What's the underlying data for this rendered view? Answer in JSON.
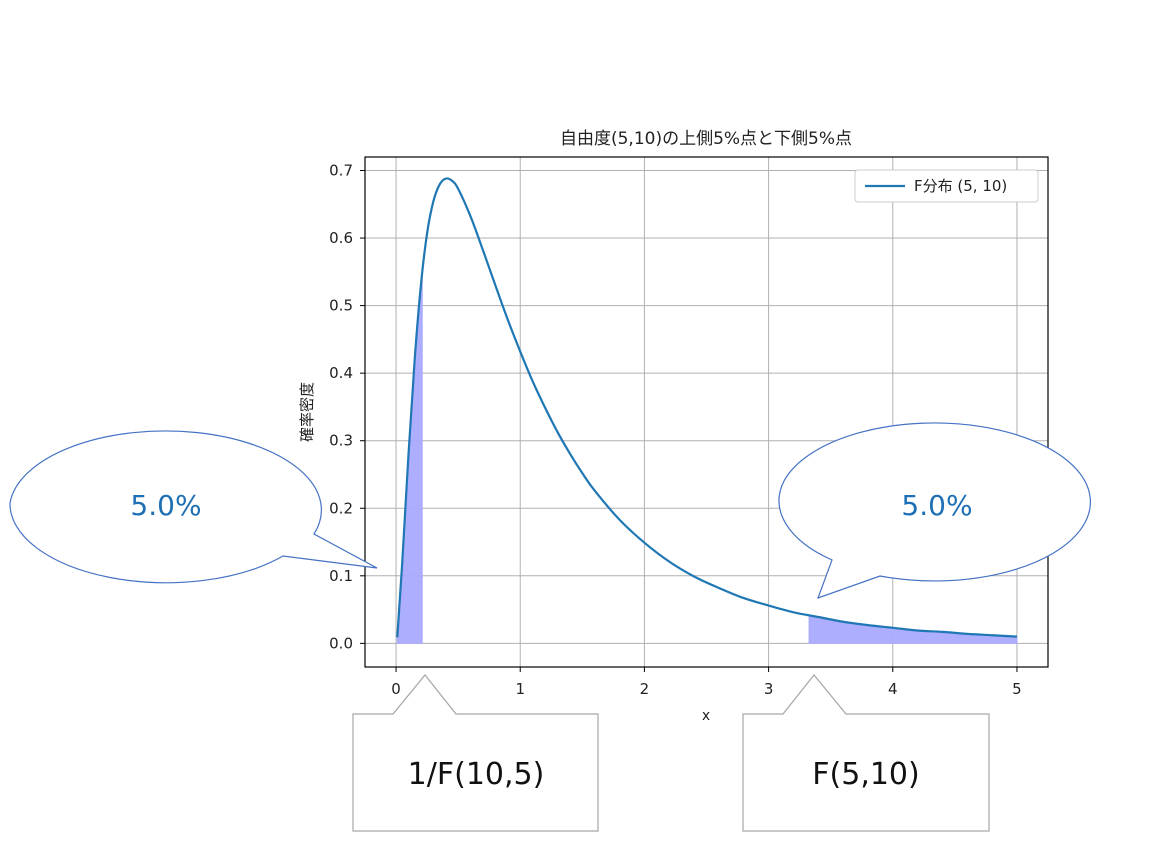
{
  "chart_data": {
    "type": "line",
    "title": "自由度(5,10)の上側5%点と下側5%点",
    "xlabel": "x",
    "ylabel": "確率密度",
    "xlim": [
      -0.25,
      5.25
    ],
    "ylim": [
      -0.035,
      0.72
    ],
    "x_ticks": [
      0,
      1,
      2,
      3,
      4,
      5
    ],
    "y_ticks": [
      0.0,
      0.1,
      0.2,
      0.3,
      0.4,
      0.5,
      0.6,
      0.7
    ],
    "grid": true,
    "legend_position": "top-right",
    "series": [
      {
        "name": "F分布 (5, 10)",
        "color": "#1f77b4",
        "x": [
          0.01,
          0.05,
          0.1,
          0.15,
          0.2,
          0.25,
          0.3,
          0.35,
          0.4,
          0.45,
          0.5,
          0.6,
          0.7,
          0.8,
          0.9,
          1.0,
          1.1,
          1.2,
          1.3,
          1.4,
          1.5,
          1.6,
          1.8,
          2.0,
          2.2,
          2.4,
          2.6,
          2.8,
          3.0,
          3.2,
          3.4,
          3.6,
          3.8,
          4.0,
          4.2,
          4.4,
          4.6,
          4.8,
          5.0
        ],
        "y": [
          0.009,
          0.12,
          0.279,
          0.42,
          0.53,
          0.607,
          0.654,
          0.679,
          0.688,
          0.685,
          0.673,
          0.632,
          0.582,
          0.53,
          0.479,
          0.432,
          0.388,
          0.349,
          0.313,
          0.281,
          0.252,
          0.226,
          0.183,
          0.149,
          0.121,
          0.099,
          0.082,
          0.067,
          0.056,
          0.046,
          0.039,
          0.032,
          0.027,
          0.023,
          0.019,
          0.017,
          0.014,
          0.012,
          0.01
        ]
      }
    ],
    "shaded_regions": [
      {
        "label": "lower 5%",
        "x_from": 0.01,
        "x_to": 0.211,
        "color": "#aaaaff"
      },
      {
        "label": "upper 5%",
        "x_from": 3.326,
        "x_to": 5.0,
        "color": "#aaaaff"
      }
    ]
  },
  "annotations": {
    "left_bubble_text": "5.0%",
    "right_bubble_text": "5.0%",
    "left_box_text": "1/F(10,5)",
    "right_box_text": "F(5,10)",
    "bubble_text_color": "#1f6fb5",
    "bubble_border_color": "#4472c4",
    "box_border_color": "#a6a6a6"
  }
}
